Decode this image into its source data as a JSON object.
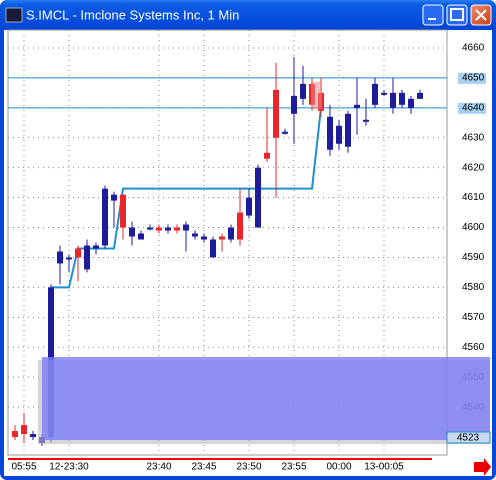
{
  "chart_data": {
    "type": "candlestick",
    "title": "S.IMCL - Imclone Systems Inc, 1 Min",
    "categories": [
      null,
      "05:55",
      null,
      null,
      null,
      null,
      "12-23:30",
      null,
      null,
      null,
      null,
      null,
      null,
      null,
      null,
      null,
      "23:40",
      null,
      null,
      null,
      null,
      "23:45",
      null,
      null,
      null,
      null,
      "23:50",
      null,
      null,
      null,
      null,
      "23:55",
      null,
      null,
      null,
      null,
      "00:00",
      null,
      null,
      null,
      null,
      "13-00:05",
      null,
      null,
      null,
      null
    ],
    "open": [
      4530,
      4531,
      4531,
      4530,
      4580,
      4592,
      4590,
      4590,
      4594,
      4594,
      4613,
      4611,
      4600,
      4600,
      4598,
      4600,
      4599,
      4600,
      4599,
      4601,
      4598,
      4597,
      4596,
      4596,
      4600,
      4596,
      4610,
      4620,
      4623,
      4630,
      4632,
      4644,
      4648,
      4641,
      4639,
      4637,
      4634,
      4638,
      4641,
      4636,
      4648,
      4645,
      4645,
      4645,
      4643,
      4645
    ],
    "high": [
      4534,
      4538,
      4532,
      4531,
      4581,
      4594,
      4591,
      4594,
      4596,
      4595,
      4614,
      4612,
      4611,
      4602,
      4599,
      4601,
      4601,
      4601,
      4601,
      4602,
      4599,
      4598,
      4597,
      4598,
      4601,
      4613,
      4613,
      4621,
      4640,
      4655,
      4633,
      4657,
      4654,
      4650,
      4650,
      4641,
      4636,
      4639,
      4650,
      4643,
      4650,
      4646,
      4650,
      4646,
      4644,
      4646
    ],
    "low": [
      4529,
      4528,
      4529,
      4527,
      4528,
      4581,
      4585,
      4582,
      4585,
      4591,
      4593,
      4600,
      4596,
      4594,
      4596,
      4599,
      4598,
      4598,
      4598,
      4592,
      4596,
      4595,
      4590,
      4592,
      4595,
      4594,
      4603,
      4600,
      4622,
      4610,
      4631,
      4628,
      4641,
      4639,
      4637,
      4624,
      4626,
      4625,
      4631,
      4634,
      4640,
      4644,
      4638,
      4640,
      4638,
      4643
    ],
    "close": [
      4532,
      4534,
      4530,
      4528,
      4530,
      4588,
      4590,
      4593,
      4586,
      4593,
      4594,
      4609,
      4611,
      4597,
      4596,
      4600,
      4600,
      4599,
      4600,
      4599,
      4597,
      4596,
      4590,
      4597,
      4596,
      4605,
      4604,
      4600,
      4625,
      4646,
      4632,
      4638,
      4643,
      4648,
      4645,
      4626,
      4628,
      4627,
      4640,
      4636,
      4641,
      4645,
      4640,
      4641,
      4640,
      4643
    ],
    "up_color": "#e8262b",
    "down_color": "#1c1c9c",
    "ylim": [
      4524,
      4666
    ],
    "yticks": [
      4540,
      4550,
      4560,
      4570,
      4580,
      4590,
      4600,
      4610,
      4620,
      4630,
      4640,
      4650,
      4660
    ],
    "grid": true,
    "hlines": [
      4650,
      4640
    ],
    "hline_color": "#1e8fd0",
    "stop_line": {
      "color": "#1e8fd0",
      "values": [
        null,
        null,
        null,
        null,
        4580,
        4580,
        4580,
        4593,
        4593,
        4593,
        4593,
        4593,
        4613,
        4613,
        4613,
        4613,
        4613,
        4613,
        4613,
        4613,
        4613,
        4613,
        4613,
        4613,
        4613,
        4613,
        4613,
        4613,
        4613,
        4613,
        4613,
        4613,
        4613,
        4613,
        4640,
        null,
        null,
        null,
        null,
        null,
        null,
        null,
        null,
        null,
        null,
        null
      ]
    },
    "price_marker": "4523"
  }
}
